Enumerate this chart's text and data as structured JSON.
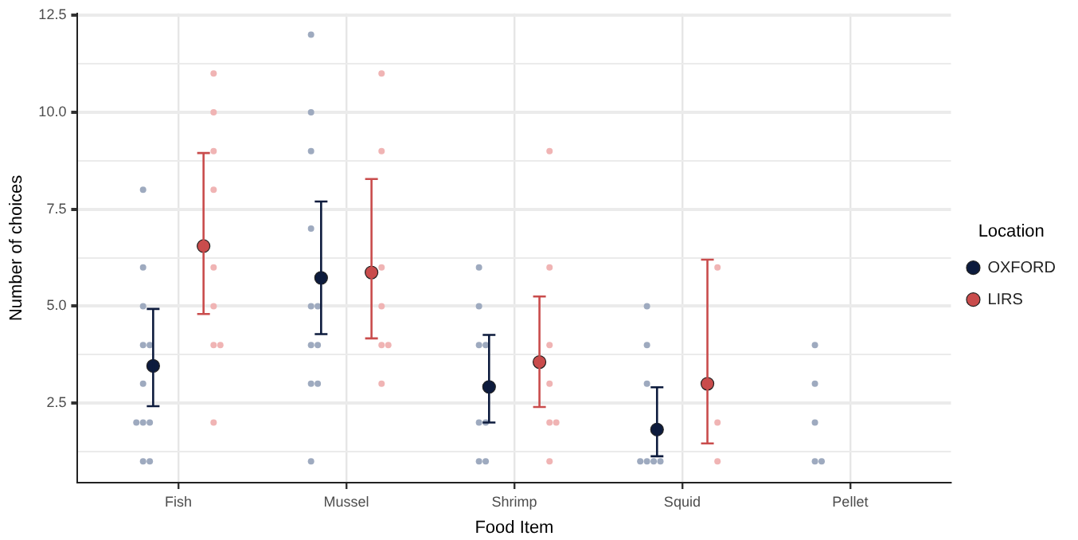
{
  "chart_data": {
    "type": "scatter",
    "xlabel": "Food Item",
    "ylabel": "Number of choices",
    "legend_title": "Location",
    "legend": "right",
    "grid": true,
    "marker": "circle",
    "categories": [
      "Fish",
      "Mussel",
      "Shrimp",
      "Squid",
      "Pellet"
    ],
    "ylim": [
      0.45,
      12.55
    ],
    "yticks": [
      {
        "value": 1.25,
        "label": null
      },
      2.5,
      {
        "value": 3.75,
        "label": null
      },
      {
        "value": 5,
        "label": "5.0"
      },
      {
        "value": 6.25,
        "label": null
      },
      7.5,
      {
        "value": 8.75,
        "label": null
      },
      {
        "value": 10,
        "label": "10.0"
      },
      {
        "value": 11.25,
        "label": null
      },
      12.5
    ],
    "series": [
      {
        "name": "OXFORD",
        "color": "#0d1b3d",
        "values": [
          3.46,
          5.73,
          2.92,
          1.82,
          null
        ],
        "errors": [
          [
            2.42,
            4.93
          ],
          [
            4.28,
            7.7
          ],
          [
            2.0,
            4.26
          ],
          [
            1.13,
            2.91
          ],
          null
        ]
      },
      {
        "name": "LIRS",
        "color": "#c94c4c",
        "values": [
          6.55,
          5.87,
          3.56,
          3.0,
          null
        ],
        "errors": [
          [
            4.8,
            8.95
          ],
          [
            4.17,
            8.28
          ],
          [
            2.4,
            5.25
          ],
          [
            1.46,
            6.2
          ],
          null
        ]
      },
      {
        "color": "#9eaabf",
        "x": [
          "Fish",
          "Fish",
          "Fish",
          "Fish",
          "Fish",
          "Fish",
          "Fish",
          "Fish",
          "Fish",
          "Fish",
          "Fish",
          "Mussel",
          "Mussel",
          "Mussel",
          "Mussel",
          "Mussel",
          "Mussel",
          "Mussel",
          "Mussel",
          "Mussel",
          "Mussel",
          "Mussel",
          "Shrimp",
          "Shrimp",
          "Shrimp",
          "Shrimp",
          "Shrimp",
          "Shrimp",
          "Shrimp",
          "Shrimp",
          "Squid",
          "Squid",
          "Squid",
          "Squid",
          "Squid",
          "Squid",
          "Squid",
          "Pellet",
          "Pellet",
          "Pellet",
          "Pellet",
          "Pellet"
        ],
        "values": [
          8,
          6,
          5,
          4,
          4,
          3,
          2,
          2,
          2,
          1,
          1,
          12,
          10,
          9,
          7,
          5,
          5,
          4,
          4,
          3,
          3,
          1,
          6,
          5,
          4,
          4,
          2,
          2,
          1,
          1,
          5,
          4,
          3,
          1,
          1,
          1,
          1,
          4,
          3,
          2,
          1,
          1
        ]
      },
      {
        "color": "#f0b4b4",
        "x": [
          "Fish",
          "Fish",
          "Fish",
          "Fish",
          "Fish",
          "Fish",
          "Fish",
          "Fish",
          "Fish",
          "Mussel",
          "Mussel",
          "Mussel",
          "Mussel",
          "Mussel",
          "Mussel",
          "Mussel",
          "Shrimp",
          "Shrimp",
          "Shrimp",
          "Shrimp",
          "Shrimp",
          "Shrimp",
          "Shrimp",
          "Squid",
          "Squid",
          "Squid"
        ],
        "values": [
          11,
          10,
          9,
          8,
          6,
          5,
          4,
          4,
          2,
          11,
          9,
          6,
          5,
          4,
          4,
          3,
          9,
          6,
          4,
          3,
          2,
          2,
          1,
          6,
          2,
          1
        ]
      }
    ]
  }
}
